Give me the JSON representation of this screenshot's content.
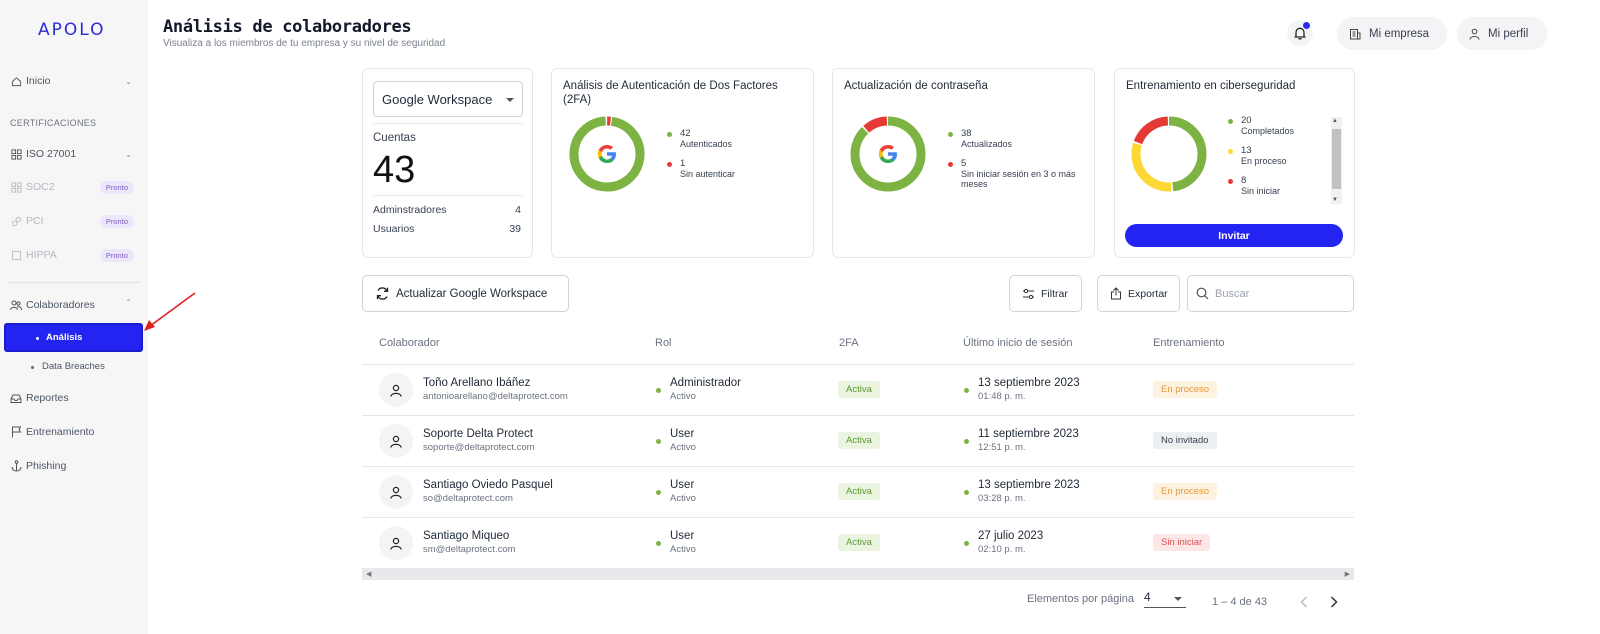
{
  "sidebar": {
    "logo": "APOLO",
    "inicio": "Inicio",
    "section": "CERTIFICACIONES",
    "iso": "ISO 27001",
    "soc2": "SOC2",
    "pci": "PCI",
    "hippa": "HIPPA",
    "pronto": "Pronto",
    "colaboradores": "Colaboradores",
    "analisis": "Análisis",
    "breaches": "Data Breaches",
    "reportes": "Reportes",
    "entrenamiento": "Entrenamiento",
    "phishing": "Phishing"
  },
  "header": {
    "title": "Análisis de colaboradores",
    "subtitle": "Visualiza a los miembros de tu empresa y su nivel de seguridad",
    "empresa": "Mi empresa",
    "perfil": "Mi perfil"
  },
  "accounts": {
    "provider": "Google Workspace",
    "label": "Cuentas",
    "total": "43",
    "admins_label": "Adminstradores",
    "admins": "4",
    "users_label": "Usuarios",
    "users": "39"
  },
  "twofa": {
    "title": "Análisis de Autenticación de Dos Factores (2FA)",
    "a_num": "42",
    "a_label": "Autenticados",
    "b_num": "1",
    "b_label": "Sin autenticar",
    "a_value": 42,
    "b_value": 1
  },
  "password": {
    "title": "Actualización de contraseña",
    "a_num": "38",
    "a_label": "Actualizados",
    "b_num": "5",
    "b_label": "Sin iniciar sesión en 3 o más meses",
    "a_value": 38,
    "b_value": 5
  },
  "training": {
    "title": "Entrenamiento en ciberseguridad",
    "a_num": "20",
    "a_label": "Completados",
    "b_num": "13",
    "b_label": "En proceso",
    "c_num": "8",
    "c_label": "Sin iniciar",
    "a_value": 20,
    "b_value": 13,
    "c_value": 8,
    "invite": "Invitar"
  },
  "colors": {
    "green": "#7cb342",
    "red": "#e53935",
    "yellow": "#fdd835",
    "accent": "#2424f2"
  },
  "toolbar": {
    "refresh": "Actualizar Google Workspace",
    "filter": "Filtrar",
    "export": "Exportar",
    "search_placeholder": "Buscar"
  },
  "table": {
    "headers": [
      "Colaborador",
      "Rol",
      "2FA",
      "Último inicio de sesión",
      "Entrenamiento"
    ],
    "rows": [
      {
        "name": "Toño Arellano Ibáñez",
        "email": "antonioarellano@deltaprotect.com",
        "role": "Administrador",
        "status": "Activo",
        "twofa": "Activa",
        "date": "13 septiembre 2023",
        "time": "01:48 p. m.",
        "training": "En proceso",
        "tr_kind": "proceso"
      },
      {
        "name": "Soporte Delta Protect",
        "email": "soporte@deltaprotect.com",
        "role": "User",
        "status": "Activo",
        "twofa": "Activa",
        "date": "11 septiembre 2023",
        "time": "12:51 p. m.",
        "training": "No invitado",
        "tr_kind": "none"
      },
      {
        "name": "Santiago Oviedo Pasquel",
        "email": "so@deltaprotect.com",
        "role": "User",
        "status": "Activo",
        "twofa": "Activa",
        "date": "13 septiembre 2023",
        "time": "03:28 p. m.",
        "training": "En proceso",
        "tr_kind": "proceso"
      },
      {
        "name": "Santiago Miqueo",
        "email": "sm@deltaprotect.com",
        "role": "User",
        "status": "Activo",
        "twofa": "Activa",
        "date": "27 julio 2023",
        "time": "02:10 p. m.",
        "training": "Sin iniciar",
        "tr_kind": "sin"
      }
    ]
  },
  "pager": {
    "label": "Elementos por página",
    "size": "4",
    "range": "1 – 4 de 43"
  }
}
